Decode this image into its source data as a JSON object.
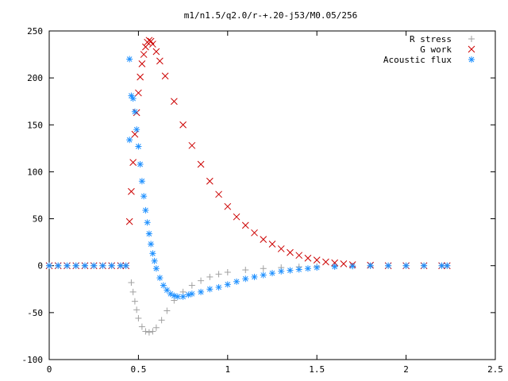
{
  "chart_data": {
    "type": "scatter",
    "title": "m1/n1.5/q2.0/r-+.20-j53/M0.05/256",
    "xlabel": "",
    "ylabel": "",
    "xlim": [
      0,
      2.5
    ],
    "ylim": [
      -100,
      250
    ],
    "xticks": [
      0,
      0.5,
      1,
      1.5,
      2,
      2.5
    ],
    "xtick_labels": [
      "0",
      "0.5",
      "1",
      "1.5",
      "2",
      "2.5"
    ],
    "yticks": [
      -100,
      -50,
      0,
      50,
      100,
      150,
      200,
      250
    ],
    "ytick_labels": [
      "-100",
      "-50",
      "0",
      "50",
      "100",
      "150",
      "200",
      "250"
    ],
    "grid": false,
    "legend_position": "top-right",
    "series": [
      {
        "name": "R stress",
        "marker": "plus",
        "color": "#a0a0a0",
        "points": [
          [
            0.0,
            0
          ],
          [
            0.05,
            0
          ],
          [
            0.1,
            0
          ],
          [
            0.15,
            0
          ],
          [
            0.2,
            0
          ],
          [
            0.25,
            0
          ],
          [
            0.3,
            0
          ],
          [
            0.35,
            0
          ],
          [
            0.4,
            0
          ],
          [
            0.43,
            0
          ],
          [
            0.46,
            -18
          ],
          [
            0.47,
            -28
          ],
          [
            0.48,
            -38
          ],
          [
            0.49,
            -47
          ],
          [
            0.5,
            -56
          ],
          [
            0.52,
            -65
          ],
          [
            0.54,
            -70
          ],
          [
            0.56,
            -71
          ],
          [
            0.58,
            -70
          ],
          [
            0.6,
            -66
          ],
          [
            0.63,
            -58
          ],
          [
            0.66,
            -48
          ],
          [
            0.7,
            -37
          ],
          [
            0.75,
            -28
          ],
          [
            0.8,
            -21
          ],
          [
            0.85,
            -16
          ],
          [
            0.9,
            -12
          ],
          [
            0.95,
            -9
          ],
          [
            1.0,
            -7
          ],
          [
            1.1,
            -4.5
          ],
          [
            1.2,
            -3
          ],
          [
            1.3,
            -2
          ],
          [
            1.4,
            -1.2
          ],
          [
            1.5,
            -0.8
          ],
          [
            1.6,
            -0.5
          ],
          [
            1.7,
            -0.3
          ],
          [
            1.8,
            -0.2
          ],
          [
            1.9,
            -0.1
          ],
          [
            2.0,
            0
          ],
          [
            2.1,
            0
          ],
          [
            2.2,
            0
          ],
          [
            2.23,
            0
          ]
        ]
      },
      {
        "name": "G work",
        "marker": "cross",
        "color": "#cc0000",
        "points": [
          [
            0.0,
            0
          ],
          [
            0.05,
            0
          ],
          [
            0.1,
            0
          ],
          [
            0.15,
            0
          ],
          [
            0.2,
            0
          ],
          [
            0.25,
            0
          ],
          [
            0.3,
            0
          ],
          [
            0.35,
            0
          ],
          [
            0.4,
            0
          ],
          [
            0.43,
            0
          ],
          [
            0.45,
            47
          ],
          [
            0.46,
            79
          ],
          [
            0.47,
            110
          ],
          [
            0.48,
            140
          ],
          [
            0.49,
            163
          ],
          [
            0.5,
            184
          ],
          [
            0.51,
            201
          ],
          [
            0.52,
            215
          ],
          [
            0.53,
            225
          ],
          [
            0.54,
            233
          ],
          [
            0.55,
            238
          ],
          [
            0.56,
            240
          ],
          [
            0.57,
            239
          ],
          [
            0.58,
            236
          ],
          [
            0.6,
            228
          ],
          [
            0.62,
            218
          ],
          [
            0.65,
            202
          ],
          [
            0.7,
            175
          ],
          [
            0.75,
            150
          ],
          [
            0.8,
            128
          ],
          [
            0.85,
            108
          ],
          [
            0.9,
            90
          ],
          [
            0.95,
            76
          ],
          [
            1.0,
            63
          ],
          [
            1.05,
            52
          ],
          [
            1.1,
            43
          ],
          [
            1.15,
            35
          ],
          [
            1.2,
            28
          ],
          [
            1.25,
            23
          ],
          [
            1.3,
            18
          ],
          [
            1.35,
            14
          ],
          [
            1.4,
            11
          ],
          [
            1.45,
            8
          ],
          [
            1.5,
            6
          ],
          [
            1.55,
            4
          ],
          [
            1.6,
            3
          ],
          [
            1.65,
            2
          ],
          [
            1.7,
            1
          ],
          [
            1.8,
            0.5
          ],
          [
            1.9,
            0
          ],
          [
            2.0,
            0
          ],
          [
            2.1,
            0
          ],
          [
            2.2,
            0
          ],
          [
            2.23,
            0
          ]
        ]
      },
      {
        "name": "Acoustic flux",
        "marker": "star",
        "color": "#1e90ff",
        "points": [
          [
            0.0,
            0
          ],
          [
            0.05,
            0
          ],
          [
            0.1,
            0
          ],
          [
            0.15,
            0
          ],
          [
            0.2,
            0
          ],
          [
            0.25,
            0
          ],
          [
            0.3,
            0
          ],
          [
            0.35,
            0
          ],
          [
            0.4,
            0
          ],
          [
            0.43,
            0
          ],
          [
            0.45,
            220
          ],
          [
            0.45,
            134
          ],
          [
            0.46,
            181
          ],
          [
            0.47,
            178
          ],
          [
            0.48,
            164
          ],
          [
            0.49,
            145
          ],
          [
            0.5,
            127
          ],
          [
            0.51,
            108
          ],
          [
            0.52,
            90
          ],
          [
            0.53,
            74
          ],
          [
            0.54,
            59
          ],
          [
            0.55,
            46
          ],
          [
            0.56,
            34
          ],
          [
            0.57,
            23
          ],
          [
            0.58,
            13
          ],
          [
            0.59,
            5
          ],
          [
            0.6,
            -3
          ],
          [
            0.62,
            -13
          ],
          [
            0.64,
            -21
          ],
          [
            0.66,
            -26
          ],
          [
            0.68,
            -30
          ],
          [
            0.7,
            -32
          ],
          [
            0.72,
            -33
          ],
          [
            0.75,
            -33
          ],
          [
            0.78,
            -31
          ],
          [
            0.8,
            -30
          ],
          [
            0.85,
            -28
          ],
          [
            0.9,
            -25
          ],
          [
            0.95,
            -23
          ],
          [
            1.0,
            -20
          ],
          [
            1.05,
            -17
          ],
          [
            1.1,
            -14
          ],
          [
            1.15,
            -12
          ],
          [
            1.2,
            -10
          ],
          [
            1.25,
            -8
          ],
          [
            1.3,
            -6
          ],
          [
            1.35,
            -5
          ],
          [
            1.4,
            -4
          ],
          [
            1.45,
            -3
          ],
          [
            1.5,
            -2
          ],
          [
            1.6,
            -1
          ],
          [
            1.7,
            -0.5
          ],
          [
            1.8,
            0
          ],
          [
            1.9,
            0
          ],
          [
            2.0,
            0
          ],
          [
            2.1,
            0
          ],
          [
            2.2,
            0
          ],
          [
            2.23,
            0
          ]
        ]
      }
    ]
  }
}
